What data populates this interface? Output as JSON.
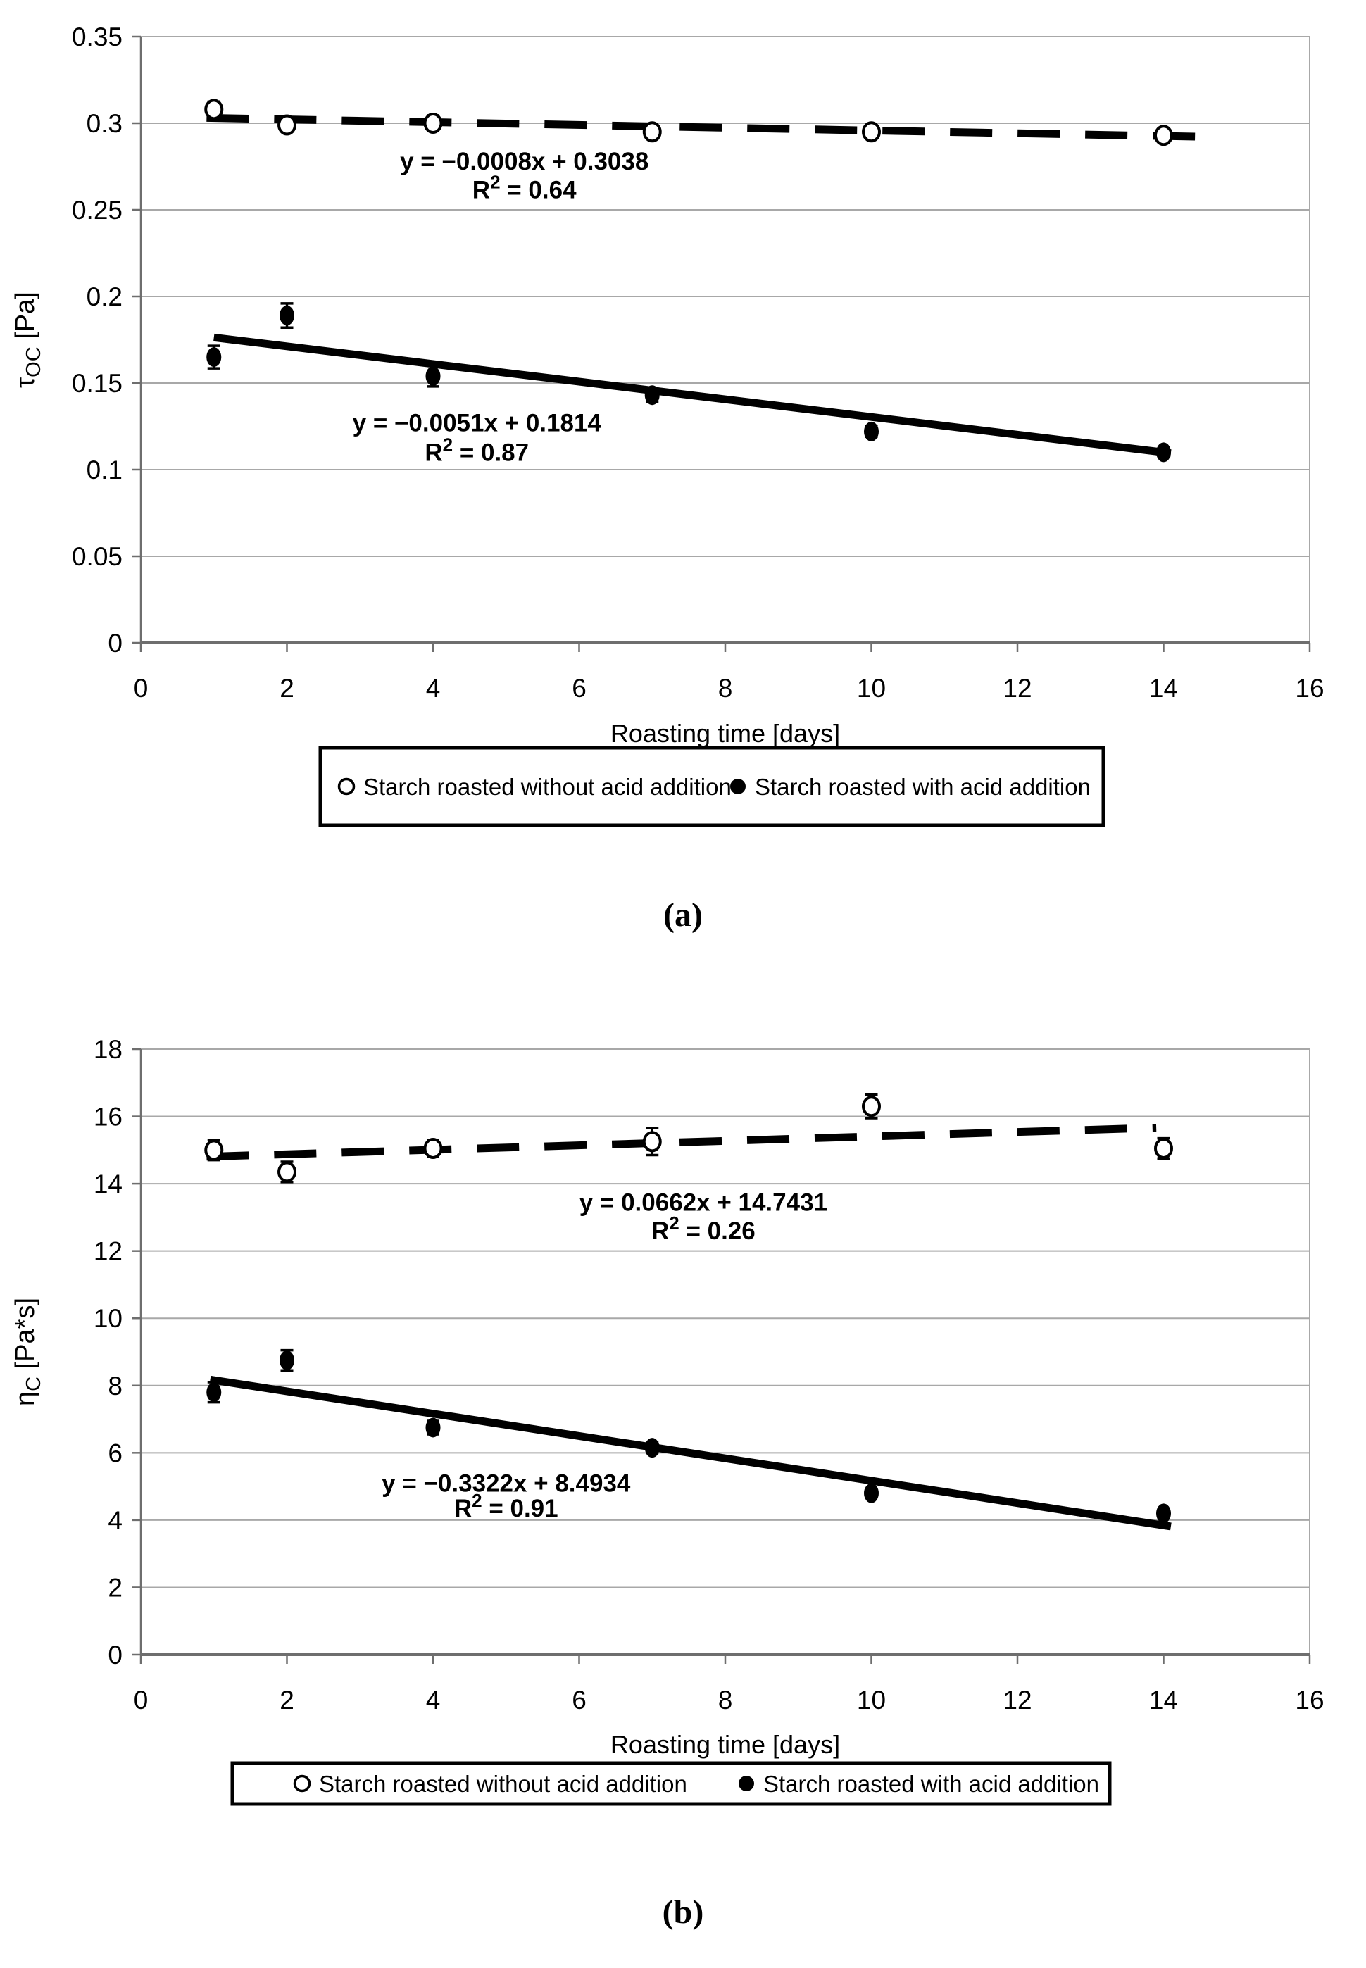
{
  "figure": {
    "caption_a": "(a)",
    "caption_b": "(b)"
  },
  "colors": {
    "background": "#ffffff",
    "gridline": "#a8a8a8",
    "axis": "#6e6e6e",
    "data": "#000000",
    "legend_border": "#000000"
  },
  "chart_data": [
    {
      "type": "scatter",
      "panel": "a",
      "xlabel": "Roasting time [days]",
      "ylabel_symbol": "τ",
      "ylabel_subscript": "OC",
      "ylabel_unit": "[Pa]",
      "xlim": [
        0,
        16
      ],
      "ylim": [
        0,
        0.35
      ],
      "xtick_values": [
        0,
        2,
        4,
        6,
        8,
        10,
        12,
        14,
        16
      ],
      "xtick_labels": [
        "0",
        "2",
        "4",
        "6",
        "8",
        "10",
        "12",
        "14",
        "16"
      ],
      "ytick_values": [
        0,
        0.05,
        0.1,
        0.15,
        0.2,
        0.25,
        0.3,
        0.35
      ],
      "ytick_labels": [
        "0",
        "0.05",
        "0.1",
        "0.15",
        "0.2",
        "0.25",
        "0.3",
        "0.35"
      ],
      "grid": "horizontal",
      "legend_position": "bottom-box",
      "x": [
        1,
        2,
        4,
        7,
        10,
        14
      ],
      "series": [
        {
          "name": "Starch roasted without acid addition",
          "marker": "open-circle",
          "values": [
            0.308,
            0.299,
            0.3,
            0.295,
            0.295,
            0.293
          ],
          "yerr": [
            0.0045,
            0.004,
            0.0045,
            0.004,
            0.003,
            0.0035
          ],
          "trend": {
            "style": "dashed",
            "equation": "y = −0.0008x + 0.3038",
            "r2": "0.64",
            "slope": -0.0008,
            "intercept": 0.3038,
            "x_start": 0.9,
            "x_end": 14.5,
            "label_x": 5.25,
            "label_y": 0.278,
            "r2_y": 0.2615
          }
        },
        {
          "name": "Starch roasted with acid addition",
          "marker": "filled-circle",
          "values": [
            0.165,
            0.189,
            0.154,
            0.143,
            0.122,
            0.11
          ],
          "yerr": [
            0.0065,
            0.007,
            0.006,
            0.004,
            0.003,
            0.002
          ],
          "trend": {
            "style": "solid",
            "equation": "y = −0.0051x + 0.1814",
            "r2": "0.87",
            "slope": -0.0051,
            "intercept": 0.1814,
            "x_start": 1.0,
            "x_end": 14.1,
            "label_x": 4.6,
            "label_y": 0.127,
            "r2_y": 0.11
          }
        }
      ]
    },
    {
      "type": "scatter",
      "panel": "b",
      "xlabel": "Roasting time [days]",
      "ylabel_symbol": "η",
      "ylabel_subscript": "C",
      "ylabel_unit": "[Pa*s]",
      "xlim": [
        0,
        16
      ],
      "ylim": [
        0,
        18
      ],
      "xtick_values": [
        0,
        2,
        4,
        6,
        8,
        10,
        12,
        14,
        16
      ],
      "xtick_labels": [
        "0",
        "2",
        "4",
        "6",
        "8",
        "10",
        "12",
        "14",
        "16"
      ],
      "ytick_values": [
        0,
        2,
        4,
        6,
        8,
        10,
        12,
        14,
        16,
        18
      ],
      "ytick_labels": [
        "0",
        "2",
        "4",
        "6",
        "8",
        "10",
        "12",
        "14",
        "16",
        "18"
      ],
      "grid": "horizontal",
      "legend_position": "bottom-box",
      "x": [
        1,
        2,
        4,
        7,
        10,
        14
      ],
      "series": [
        {
          "name": "Starch roasted without acid addition",
          "marker": "open-circle",
          "values": [
            15.0,
            14.35,
            15.05,
            15.25,
            16.3,
            15.05
          ],
          "yerr": [
            0.3,
            0.3,
            0.25,
            0.4,
            0.35,
            0.3
          ],
          "trend": {
            "style": "dashed",
            "equation": "y = 0.0662x + 14.7431",
            "r2": "0.26",
            "slope": 0.0662,
            "intercept": 14.7431,
            "x_start": 0.9,
            "x_end": 13.9,
            "label_x": 7.7,
            "label_y": 13.45,
            "r2_y": 12.6
          }
        },
        {
          "name": "Starch roasted with acid addition",
          "marker": "filled-circle",
          "values": [
            7.8,
            8.75,
            6.75,
            6.15,
            4.8,
            4.2
          ],
          "yerr": [
            0.3,
            0.3,
            0.2,
            0.15,
            0.12,
            0.12
          ],
          "trend": {
            "style": "solid",
            "equation": "y = −0.3322x + 8.4934",
            "r2": "0.91",
            "slope": -0.3322,
            "intercept": 8.4934,
            "x_start": 0.95,
            "x_end": 14.1,
            "label_x": 5.0,
            "label_y": 5.1,
            "r2_y": 4.35
          }
        }
      ]
    }
  ]
}
